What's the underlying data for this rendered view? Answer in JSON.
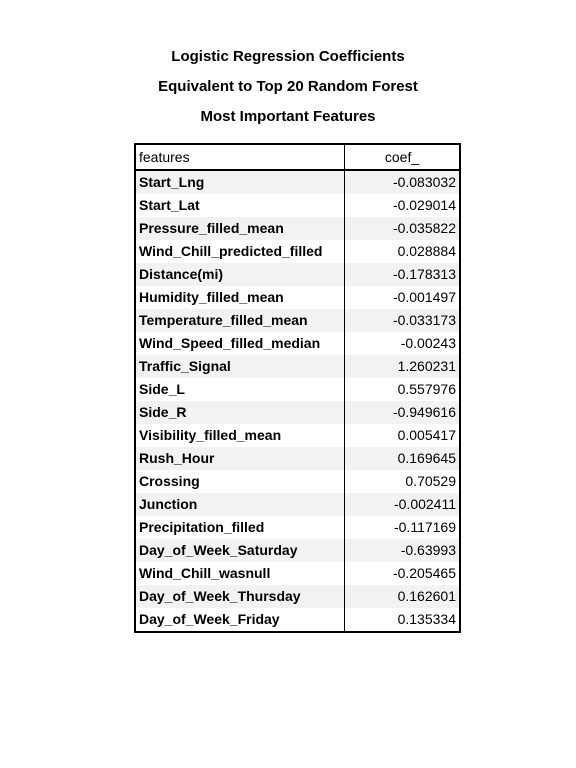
{
  "title": {
    "line1": "Logistic Regression Coefficients",
    "line2": "Equivalent to Top 20 Random Forest",
    "line3": "Most Important Features"
  },
  "table": {
    "headers": [
      "features",
      "coef_"
    ],
    "rows": [
      {
        "feature": "Start_Lng",
        "coef": "-0.083032"
      },
      {
        "feature": "Start_Lat",
        "coef": "-0.029014"
      },
      {
        "feature": "Pressure_filled_mean",
        "coef": "-0.035822"
      },
      {
        "feature": "Wind_Chill_predicted_filled",
        "coef": "0.028884"
      },
      {
        "feature": "Distance(mi)",
        "coef": "-0.178313"
      },
      {
        "feature": "Humidity_filled_mean",
        "coef": "-0.001497"
      },
      {
        "feature": "Temperature_filled_mean",
        "coef": "-0.033173"
      },
      {
        "feature": "Wind_Speed_filled_median",
        "coef": "-0.00243"
      },
      {
        "feature": "Traffic_Signal",
        "coef": "1.260231"
      },
      {
        "feature": "Side_L",
        "coef": "0.557976"
      },
      {
        "feature": "Side_R",
        "coef": "-0.949616"
      },
      {
        "feature": "Visibility_filled_mean",
        "coef": "0.005417"
      },
      {
        "feature": "Rush_Hour",
        "coef": "0.169645"
      },
      {
        "feature": "Crossing",
        "coef": "0.70529"
      },
      {
        "feature": "Junction",
        "coef": "-0.002411"
      },
      {
        "feature": "Precipitation_filled",
        "coef": "-0.117169"
      },
      {
        "feature": "Day_of_Week_Saturday",
        "coef": "-0.63993"
      },
      {
        "feature": "Wind_Chill_wasnull",
        "coef": "-0.205465"
      },
      {
        "feature": "Day_of_Week_Thursday",
        "coef": "0.162601"
      },
      {
        "feature": "Day_of_Week_Friday",
        "coef": "0.135334"
      }
    ]
  }
}
